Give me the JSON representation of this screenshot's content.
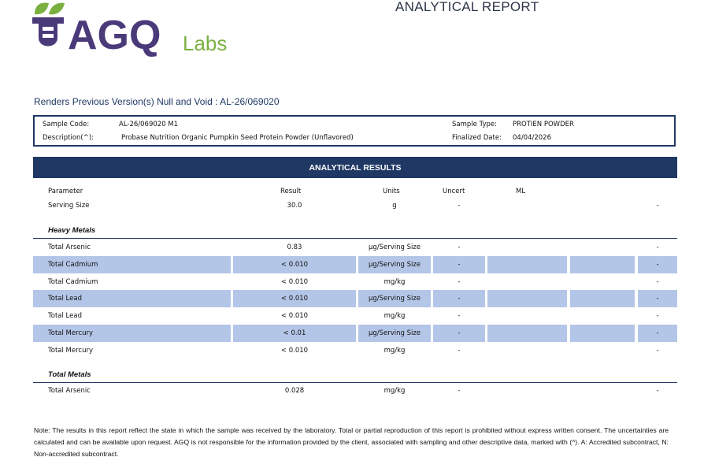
{
  "logo": {
    "text": "AGQ",
    "sub": "Labs"
  },
  "report_title": "ANALYTICAL REPORT",
  "null_void": "Renders Previous Version(s) Null and Void : AL-26/069020",
  "info": {
    "sample_code_label": "Sample Code:",
    "sample_code": "AL-26/069020  M1",
    "description_label": "Description(^):",
    "description": "Probase Nutrition Organic Pumpkin Seed Protein Powder (Unflavored)",
    "sample_type_label": "Sample Type:",
    "sample_type": "PROTIEN POWDER",
    "finalized_label": "Finalized Date:",
    "finalized": "04/04/2026"
  },
  "results_header": "ANALYTICAL RESULTS",
  "columns": {
    "parameter": "Parameter",
    "result": "Result",
    "units": "Units",
    "uncert": "Uncert",
    "ml": "ML"
  },
  "serving": {
    "parameter": "Serving Size",
    "result": "30.0",
    "units": "g",
    "uncert": "-",
    "last": "-"
  },
  "heavy_metals": {
    "title": "Heavy Metals",
    "rows": [
      {
        "parameter": "Total Arsenic",
        "result": "0.83",
        "units": "µg/Serving Size",
        "uncert": "-",
        "last": "-"
      },
      {
        "parameter": "Total Cadmium",
        "result": "< 0.010",
        "units": "µg/Serving Size",
        "uncert": "-",
        "last": "-"
      },
      {
        "parameter": "Total Cadmium",
        "result": "< 0.010",
        "units": "mg/kg",
        "uncert": "-",
        "last": "-"
      },
      {
        "parameter": "Total Lead",
        "result": "< 0.010",
        "units": "µg/Serving Size",
        "uncert": "-",
        "last": "-"
      },
      {
        "parameter": "Total Lead",
        "result": "< 0.010",
        "units": "mg/kg",
        "uncert": "-",
        "last": "-"
      },
      {
        "parameter": "Total Mercury",
        "result": "< 0.01",
        "units": "µg/Serving Size",
        "uncert": "-",
        "last": "-"
      },
      {
        "parameter": "Total Mercury",
        "result": "< 0.010",
        "units": "mg/kg",
        "uncert": "-",
        "last": "-"
      }
    ]
  },
  "total_metals": {
    "title": "Total Metals",
    "rows": [
      {
        "parameter": "Total Arsenic",
        "result": "0.028",
        "units": "mg/kg",
        "uncert": "-",
        "last": "-"
      }
    ]
  },
  "note": "Note: The results in this report reflect the state in which the sample was received by the laboratory. Total or partial reproduction of this report is prohibited without express written consent. The uncertainties are calculated and can be available upon request. AGQ is not responsible for the information provided by the client, associated with sampling and other descriptive data, marked with (^). A: Accredited subcontract, N: Non-accredited subcontract.",
  "colors": {
    "navy": "#1f3864",
    "shade": "#b4c6e7",
    "logo_purple": "#4b3a7a",
    "logo_green": "#7ab040"
  }
}
